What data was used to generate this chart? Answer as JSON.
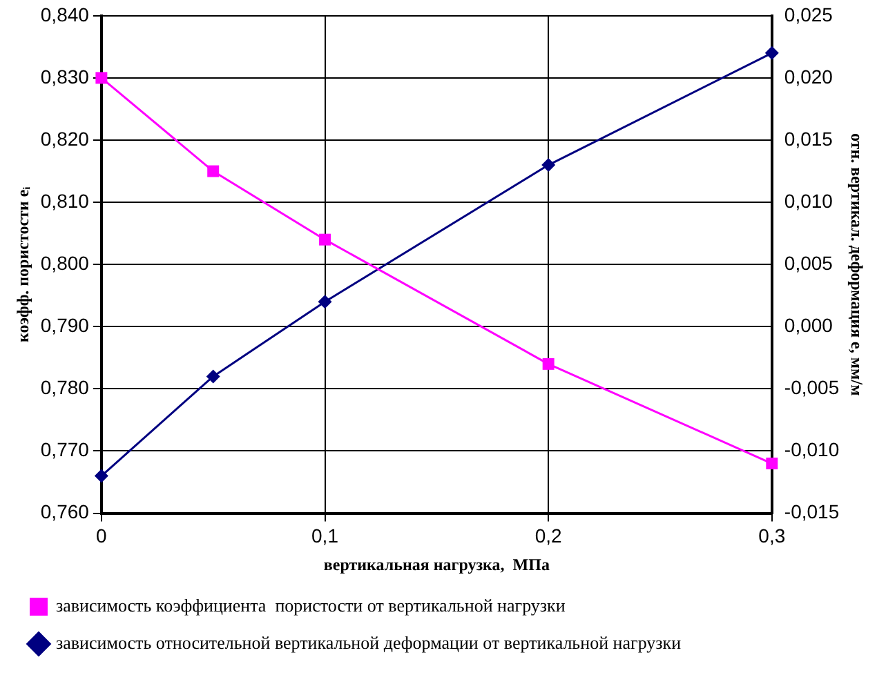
{
  "chart_data": {
    "type": "line",
    "xlabel": "вертикальная нагрузка,  МПа",
    "ylabel": "коэфф. пористости eᵢ",
    "y2label": "отн. вертикал. деформация e, мм/м",
    "x": [
      0,
      0.05,
      0.1,
      0.2,
      0.3
    ],
    "xlim": [
      0,
      0.3
    ],
    "xticks": [
      {
        "value": 0,
        "label": "0"
      },
      {
        "value": 0.1,
        "label": "0,1"
      },
      {
        "value": 0.2,
        "label": "0,2"
      },
      {
        "value": 0.3,
        "label": "0,3"
      }
    ],
    "ylim": [
      0.76,
      0.84
    ],
    "yticks": [
      {
        "value": 0.76,
        "label": "0,760"
      },
      {
        "value": 0.77,
        "label": "0,770"
      },
      {
        "value": 0.78,
        "label": "0,780"
      },
      {
        "value": 0.79,
        "label": "0,790"
      },
      {
        "value": 0.8,
        "label": "0,800"
      },
      {
        "value": 0.81,
        "label": "0,810"
      },
      {
        "value": 0.82,
        "label": "0,820"
      },
      {
        "value": 0.83,
        "label": "0,830"
      },
      {
        "value": 0.84,
        "label": "0,840"
      }
    ],
    "y2lim": [
      -0.015,
      0.025
    ],
    "y2ticks": [
      {
        "value": -0.015,
        "label": "-0,015"
      },
      {
        "value": -0.01,
        "label": "-0,010"
      },
      {
        "value": -0.005,
        "label": "-0,005"
      },
      {
        "value": 0,
        "label": "0,000"
      },
      {
        "value": 0.005,
        "label": "0,005"
      },
      {
        "value": 0.01,
        "label": "0,010"
      },
      {
        "value": 0.015,
        "label": "0,015"
      },
      {
        "value": 0.02,
        "label": "0,020"
      },
      {
        "value": 0.025,
        "label": "0,025"
      }
    ],
    "series": [
      {
        "name": "зависимость коэффициента  пористости от вертикальной нагрузки",
        "color": "#ff00ff",
        "marker": "square",
        "values": [
          0.83,
          0.815,
          0.804,
          0.784,
          0.768
        ]
      },
      {
        "name": "зависимость относительной вертикальной деформации от вертикальной нагрузки",
        "color": "#000080",
        "marker": "diamond",
        "axis": "y2",
        "values": [
          -0.012,
          -0.004,
          0.002,
          0.013,
          0.022
        ]
      }
    ],
    "grid": true,
    "legend": "bottom",
    "line_style": "solid"
  }
}
